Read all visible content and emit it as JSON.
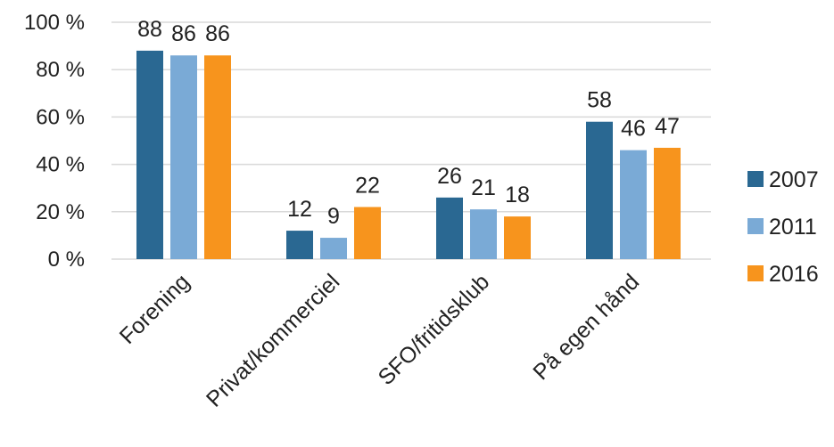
{
  "chart_data": {
    "type": "bar",
    "categories": [
      "Forening",
      "Privat/kommerciel",
      "SFO/fritidsklub",
      "På egen hånd"
    ],
    "series": [
      {
        "name": "2007",
        "color": "#2a6892",
        "values": [
          88,
          12,
          26,
          58
        ]
      },
      {
        "name": "2011",
        "color": "#7aaad6",
        "values": [
          86,
          9,
          21,
          46
        ]
      },
      {
        "name": "2016",
        "color": "#f7941d",
        "values": [
          86,
          22,
          18,
          47
        ]
      }
    ],
    "yticks": [
      "0 %",
      "20 %",
      "40 %",
      "60 %",
      "80 %",
      "100 %"
    ],
    "ylim": [
      0,
      100
    ],
    "grid": true,
    "legend_position": "right"
  }
}
